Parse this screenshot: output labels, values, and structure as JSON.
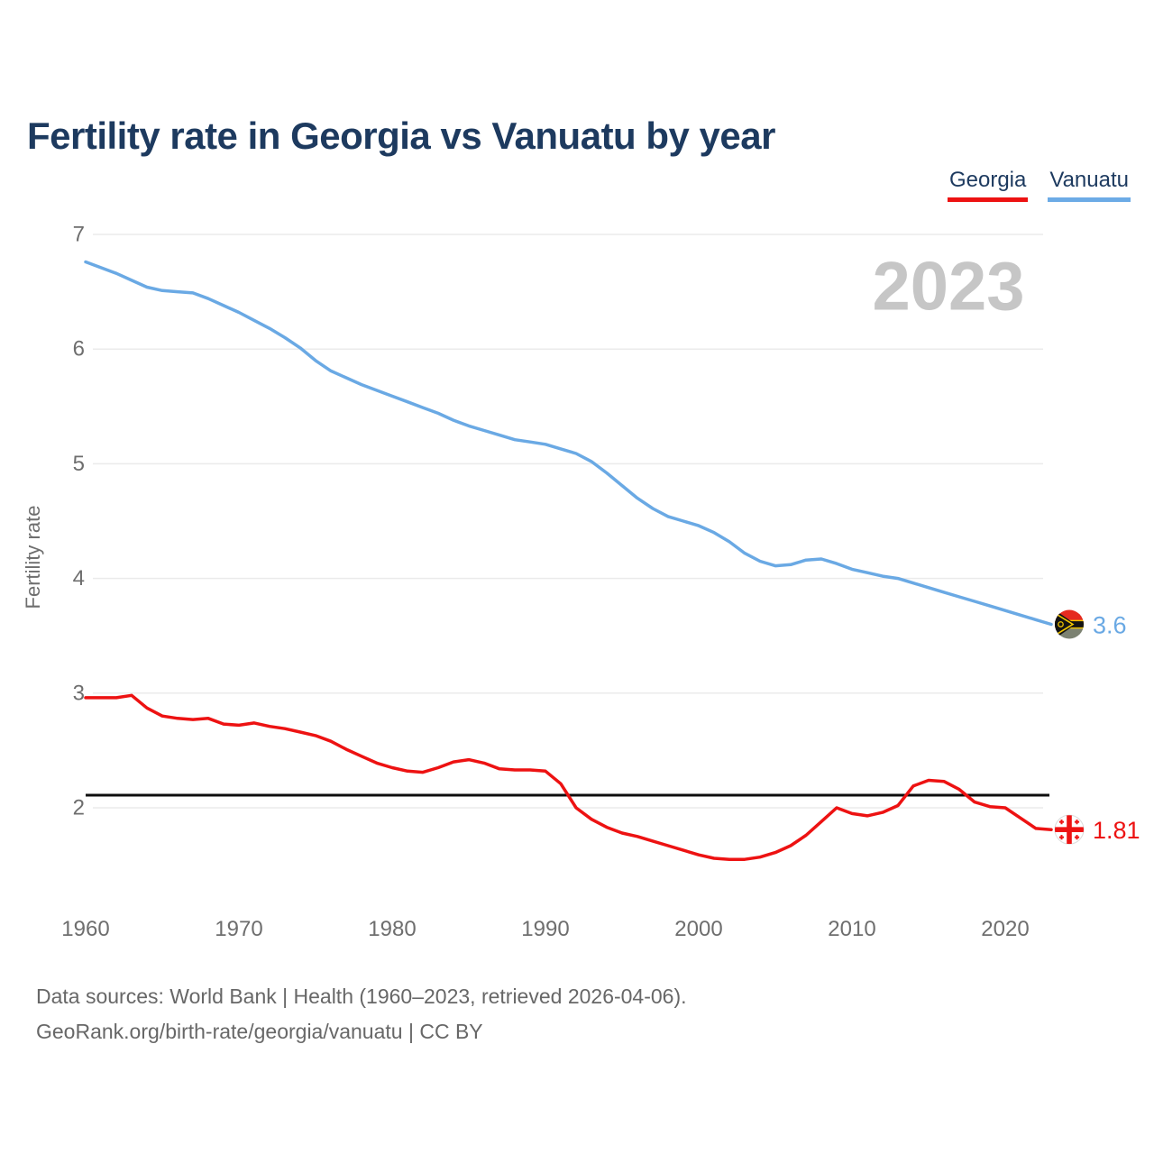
{
  "page": {
    "title": "Fertility rate in Georgia vs Vanuatu by year",
    "watermark": "2023"
  },
  "legend": [
    {
      "label": "Georgia",
      "color": "#ed1212"
    },
    {
      "label": "Vanuatu",
      "color": "#6cabe6"
    }
  ],
  "footer": {
    "line1": "Data sources: World Bank | Health (1960–2023, retrieved 2026-04-06).",
    "line2": "GeoRank.org/birth-rate/georgia/vanuatu | CC BY"
  },
  "chart_data": {
    "type": "line",
    "title": "Fertility rate in Georgia vs Vanuatu by year",
    "xlabel": "",
    "ylabel": "Fertility rate",
    "x_ticks": [
      1960,
      1970,
      1980,
      1990,
      2000,
      2010,
      2020
    ],
    "y_ticks": [
      2,
      3,
      4,
      5,
      6,
      7
    ],
    "ylim": [
      1.4,
      7.05
    ],
    "grid": true,
    "legend_position": "top-right",
    "watermark": "2023",
    "reference_line": {
      "value": 2.11,
      "color": "#0d0d0d"
    },
    "x": [
      1960,
      1961,
      1962,
      1963,
      1964,
      1965,
      1966,
      1967,
      1968,
      1969,
      1970,
      1971,
      1972,
      1973,
      1974,
      1975,
      1976,
      1977,
      1978,
      1979,
      1980,
      1981,
      1982,
      1983,
      1984,
      1985,
      1986,
      1987,
      1988,
      1989,
      1990,
      1991,
      1992,
      1993,
      1994,
      1995,
      1996,
      1997,
      1998,
      1999,
      2000,
      2001,
      2002,
      2003,
      2004,
      2005,
      2006,
      2007,
      2008,
      2009,
      2010,
      2011,
      2012,
      2013,
      2014,
      2015,
      2016,
      2017,
      2018,
      2019,
      2020,
      2021,
      2022,
      2023
    ],
    "series": [
      {
        "name": "Georgia",
        "color": "#ed1212",
        "end_label": "1.81",
        "end_value": 1.81,
        "flag": "georgia",
        "values": [
          2.96,
          2.96,
          2.96,
          2.98,
          2.87,
          2.8,
          2.78,
          2.77,
          2.78,
          2.73,
          2.72,
          2.74,
          2.71,
          2.69,
          2.66,
          2.63,
          2.58,
          2.51,
          2.45,
          2.39,
          2.35,
          2.32,
          2.31,
          2.35,
          2.4,
          2.42,
          2.39,
          2.34,
          2.33,
          2.33,
          2.32,
          2.21,
          2.0,
          1.9,
          1.83,
          1.78,
          1.75,
          1.71,
          1.67,
          1.63,
          1.59,
          1.56,
          1.55,
          1.55,
          1.57,
          1.61,
          1.67,
          1.76,
          1.88,
          2.0,
          1.95,
          1.93,
          1.96,
          2.02,
          2.19,
          2.24,
          2.23,
          2.16,
          2.05,
          2.01,
          2.0,
          1.91,
          1.82,
          1.81
        ]
      },
      {
        "name": "Vanuatu",
        "color": "#6aa9e4",
        "end_label": "3.6",
        "end_value": 3.6,
        "flag": "vanuatu",
        "values": [
          6.76,
          6.71,
          6.66,
          6.6,
          6.54,
          6.51,
          6.5,
          6.49,
          6.44,
          6.38,
          6.32,
          6.25,
          6.18,
          6.1,
          6.01,
          5.9,
          5.81,
          5.75,
          5.69,
          5.64,
          5.59,
          5.54,
          5.49,
          5.44,
          5.38,
          5.33,
          5.29,
          5.25,
          5.21,
          5.19,
          5.17,
          5.13,
          5.09,
          5.02,
          4.92,
          4.81,
          4.7,
          4.61,
          4.54,
          4.5,
          4.46,
          4.4,
          4.32,
          4.22,
          4.15,
          4.11,
          4.12,
          4.16,
          4.17,
          4.13,
          4.08,
          4.05,
          4.02,
          4.0,
          3.96,
          3.92,
          3.88,
          3.84,
          3.8,
          3.76,
          3.72,
          3.68,
          3.64,
          3.6
        ]
      }
    ]
  },
  "style": {
    "axis_text_color": "#6e6e6e",
    "grid_color": "#ebebeb",
    "watermark_color": "#c6c6c6",
    "flag_yellow": "#f3c700",
    "vanuatu_flag_red": "#e52a1f",
    "vanuatu_flag_green": "#7c8272",
    "flag_black": "#131313"
  }
}
